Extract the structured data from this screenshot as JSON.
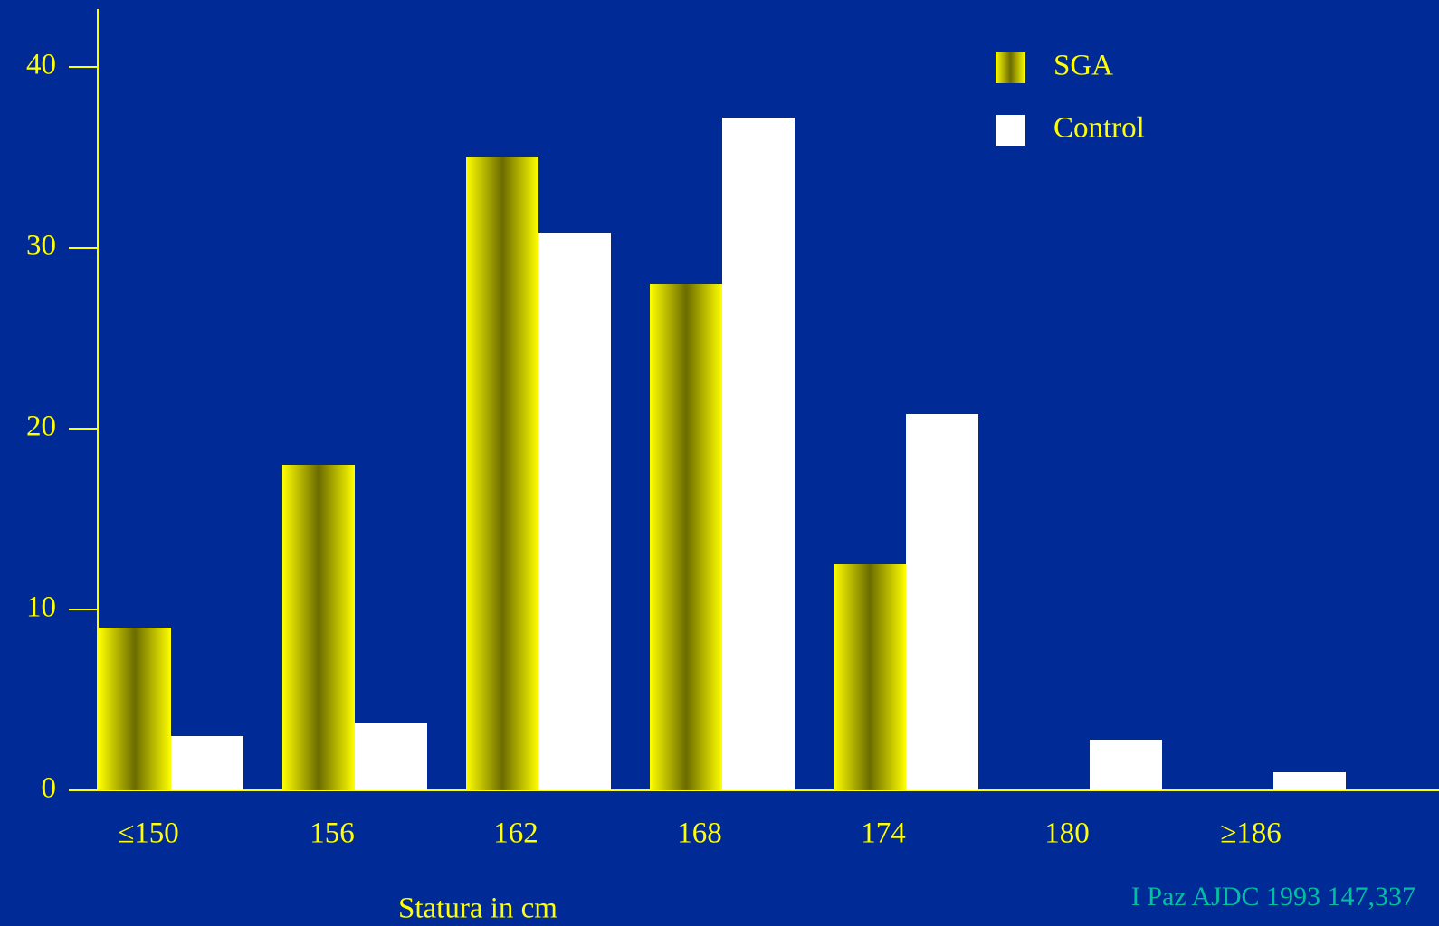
{
  "chart_data": {
    "type": "bar",
    "x_label": "Statura in cm",
    "annotation": "I Paz AJDC 1993 147,337",
    "categories": [
      "≤150",
      "156",
      "162",
      "168",
      "174",
      "180",
      "≥186"
    ],
    "series": [
      {
        "name": "SGA",
        "color": "#ffff00",
        "values": [
          9,
          18,
          35,
          28,
          12.5,
          0,
          0
        ]
      },
      {
        "name": "Control",
        "color": "#ffffff",
        "values": [
          3,
          3.7,
          30.8,
          37.2,
          20.8,
          2.8,
          1
        ]
      }
    ],
    "ylim": [
      0,
      43
    ],
    "yticks": [
      0,
      10,
      20,
      30,
      40
    ],
    "grid": false
  }
}
